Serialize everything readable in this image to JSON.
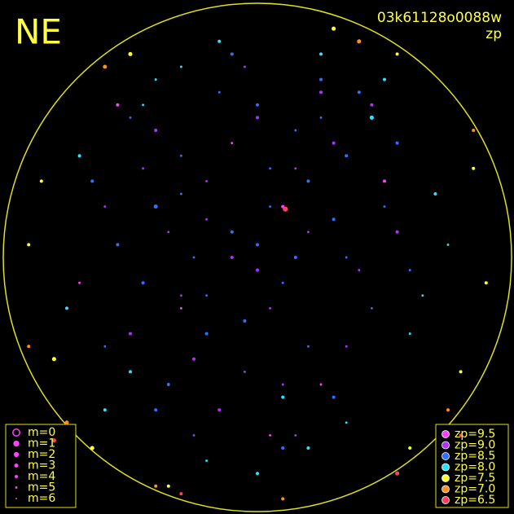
{
  "chart_data": {
    "type": "scatter",
    "corner_label": "NE",
    "title": "03k61128o0088w",
    "subtitle": "zp",
    "xlim": [
      -1,
      1
    ],
    "ylim": [
      -1,
      1
    ],
    "size_legend": [
      "m=0",
      "m=1",
      "m=2",
      "m=3",
      "m=4",
      "m=5",
      "m=6"
    ],
    "series": [
      {
        "name": "zp=9.5",
        "color": "#ff40ff",
        "x": [
          -0.55,
          -0.3,
          0.1,
          0.25,
          -0.1,
          0.5,
          -0.7,
          0.05
        ],
        "y": [
          0.6,
          -0.2,
          0.2,
          -0.5,
          0.45,
          0.3,
          -0.1,
          -0.7
        ],
        "m": [
          4,
          5,
          4,
          5,
          5,
          4,
          5,
          5
        ]
      },
      {
        "name": "zp=9.0",
        "color": "#b030ff",
        "x": [
          -0.4,
          -0.2,
          0.0,
          0.15,
          0.3,
          -0.35,
          -0.1,
          0.2,
          0.4,
          -0.5,
          -0.25,
          0.05,
          0.35,
          -0.15,
          0.1,
          -0.45,
          0.25,
          -0.05,
          0.45,
          -0.3,
          0.0,
          0.15,
          -0.6,
          0.55,
          -0.2
        ],
        "y": [
          0.5,
          0.3,
          0.55,
          0.35,
          0.45,
          0.1,
          0.0,
          0.1,
          -0.05,
          -0.3,
          -0.4,
          -0.2,
          -0.35,
          -0.6,
          -0.5,
          0.35,
          0.65,
          0.75,
          0.6,
          -0.15,
          -0.05,
          -0.7,
          0.2,
          0.1,
          0.15
        ],
        "m": [
          4,
          5,
          4,
          5,
          4,
          5,
          4,
          5,
          5,
          4,
          4,
          5,
          5,
          4,
          5,
          5,
          4,
          5,
          4,
          5,
          4,
          5,
          5,
          4,
          5
        ]
      },
      {
        "name": "zp=8.5",
        "color": "#3070ff",
        "x": [
          -0.1,
          0.05,
          0.2,
          -0.25,
          -0.4,
          0.3,
          0.1,
          -0.05,
          -0.2,
          0.35,
          0.5,
          -0.55,
          -0.3,
          0.0,
          0.15,
          0.25,
          -0.15,
          -0.35,
          0.45,
          -0.45,
          0.6,
          -0.65,
          0.05,
          -0.1,
          0.2,
          0.3,
          -0.25,
          0.1,
          -0.5,
          0.4,
          -0.05,
          0.15,
          -0.3,
          0.55,
          -0.6,
          0.0,
          0.35,
          -0.2,
          0.25,
          -0.4
        ],
        "y": [
          0.1,
          0.2,
          0.3,
          0.0,
          0.2,
          0.15,
          -0.1,
          -0.25,
          -0.15,
          0.4,
          0.2,
          0.05,
          0.4,
          0.6,
          0.5,
          0.7,
          0.65,
          -0.5,
          -0.2,
          -0.1,
          -0.05,
          0.3,
          0.35,
          0.8,
          -0.35,
          -0.55,
          -0.7,
          -0.75,
          0.55,
          0.65,
          -0.45,
          0.0,
          0.25,
          0.45,
          -0.35,
          0.05,
          0.0,
          -0.3,
          0.55,
          -0.6
        ],
        "m": [
          4,
          5,
          4,
          5,
          3,
          4,
          5,
          4,
          5,
          4,
          5,
          4,
          5,
          4,
          5,
          4,
          5,
          4,
          5,
          4,
          5,
          4,
          5,
          4,
          5,
          4,
          5,
          4,
          5,
          4,
          5,
          4,
          5,
          4,
          5,
          4,
          5,
          4,
          5,
          4
        ]
      },
      {
        "name": "zp=8.0",
        "color": "#30e0ff",
        "x": [
          -0.7,
          -0.5,
          0.6,
          0.7,
          -0.3,
          0.2,
          0.45,
          -0.6,
          0.65,
          -0.15,
          0.35,
          -0.75,
          0.75,
          0.0,
          -0.4,
          0.5,
          -0.45,
          0.25,
          -0.2,
          0.1
        ],
        "y": [
          0.4,
          -0.45,
          -0.3,
          0.25,
          0.75,
          -0.75,
          0.55,
          -0.6,
          -0.15,
          0.85,
          -0.65,
          -0.2,
          0.05,
          -0.85,
          0.7,
          0.7,
          0.6,
          0.8,
          -0.8,
          -0.55
        ],
        "m": [
          4,
          4,
          5,
          4,
          5,
          4,
          3,
          4,
          5,
          4,
          5,
          4,
          5,
          4,
          5,
          4,
          5,
          4,
          5,
          4
        ]
      },
      {
        "name": "zp=7.5",
        "color": "#ffff30",
        "x": [
          -0.85,
          -0.8,
          0.85,
          0.8,
          -0.5,
          0.55,
          -0.9,
          0.9,
          0.3,
          -0.35,
          0.6,
          -0.65
        ],
        "y": [
          0.3,
          -0.4,
          0.35,
          -0.45,
          0.8,
          0.8,
          0.05,
          -0.1,
          0.9,
          -0.9,
          -0.75,
          -0.75
        ],
        "m": [
          4,
          3,
          4,
          4,
          3,
          4,
          4,
          4,
          3,
          4,
          4,
          3
        ]
      },
      {
        "name": "zp=7.0",
        "color": "#ff9020",
        "x": [
          -0.75,
          0.75,
          -0.4,
          0.4,
          -0.9,
          0.85,
          -0.6,
          0.1
        ],
        "y": [
          -0.65,
          -0.6,
          -0.9,
          0.85,
          -0.35,
          0.5,
          0.75,
          -0.95
        ],
        "m": [
          3,
          4,
          4,
          3,
          4,
          4,
          3,
          4
        ]
      },
      {
        "name": "zp=6.5",
        "color": "#ff4060",
        "x": [
          0.11,
          -0.8,
          0.8,
          -0.3,
          0.55
        ],
        "y": [
          0.19,
          -0.72,
          -0.7,
          -0.93,
          -0.85
        ],
        "m": [
          2,
          3,
          4,
          4,
          3
        ]
      }
    ]
  }
}
